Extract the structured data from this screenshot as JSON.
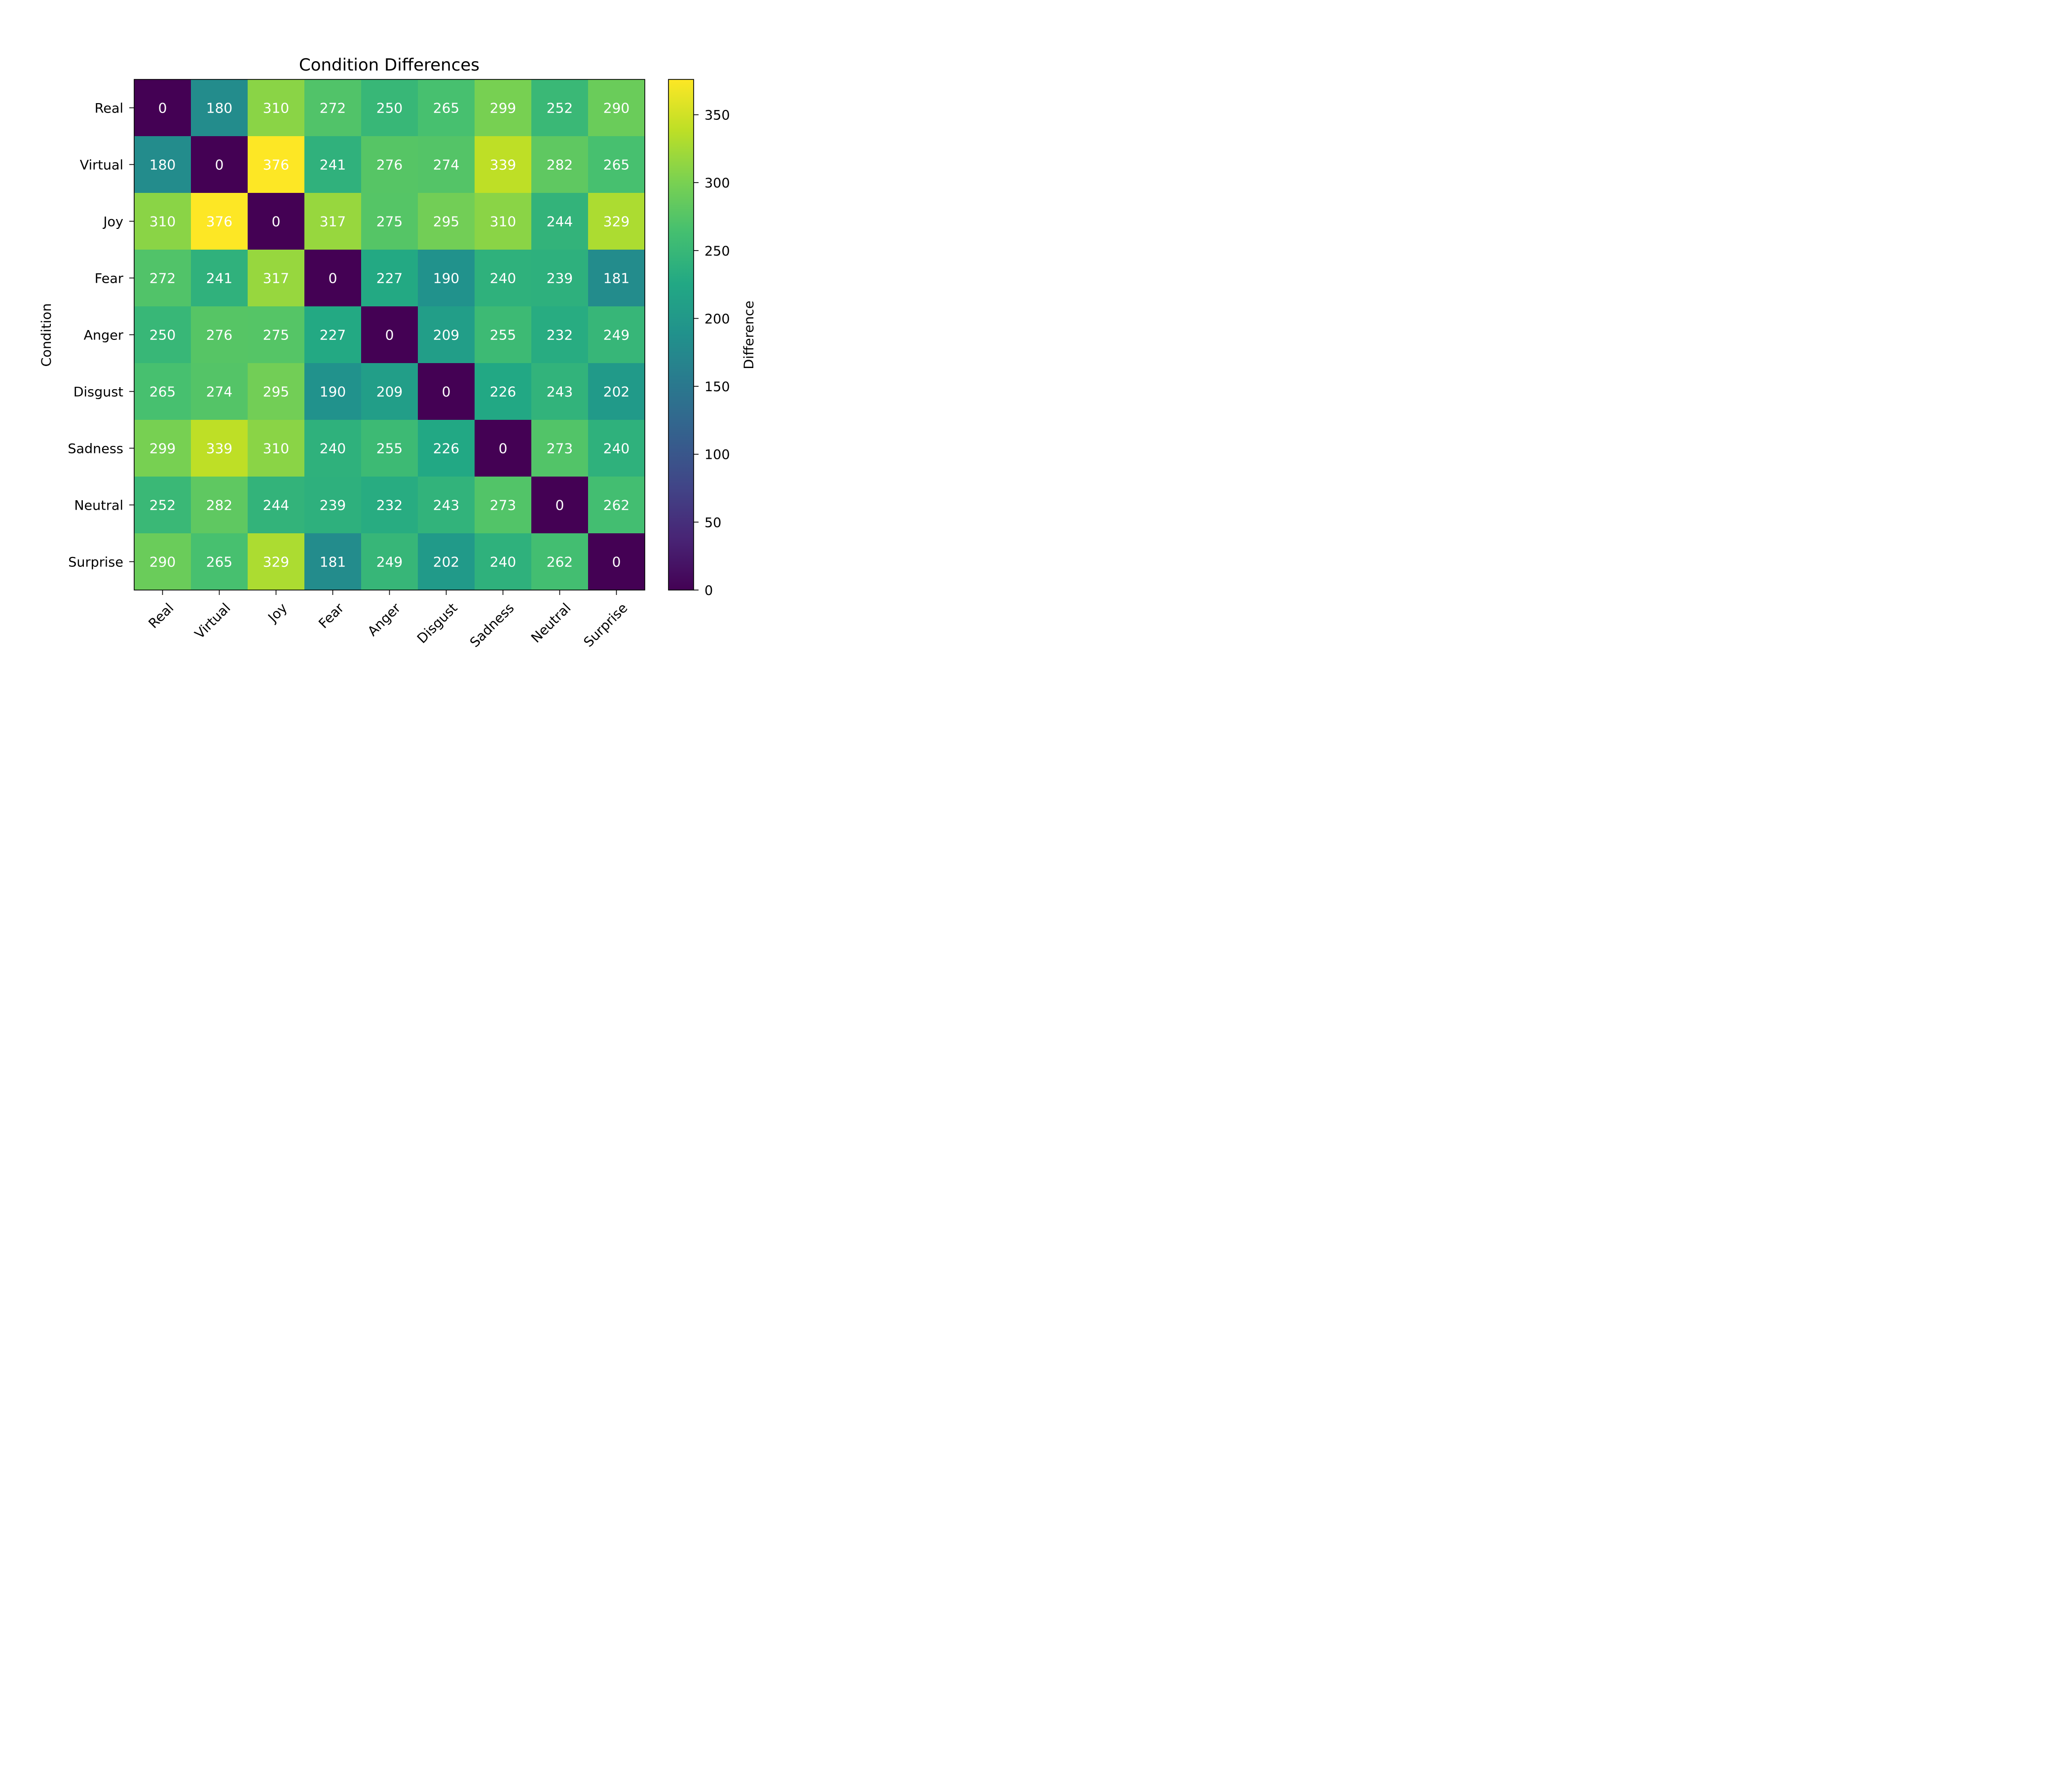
{
  "chart_data": {
    "type": "heatmap",
    "title": "Condition Differences",
    "xlabel": "",
    "ylabel": "Condition",
    "colorbar_label": "Difference",
    "x_categories": [
      "Real",
      "Virtual",
      "Joy",
      "Fear",
      "Anger",
      "Disgust",
      "Sadness",
      "Neutral",
      "Surprise"
    ],
    "y_categories": [
      "Real",
      "Virtual",
      "Joy",
      "Fear",
      "Anger",
      "Disgust",
      "Sadness",
      "Neutral",
      "Surprise"
    ],
    "values": [
      [
        0,
        180,
        310,
        272,
        250,
        265,
        299,
        252,
        290
      ],
      [
        180,
        0,
        376,
        241,
        276,
        274,
        339,
        282,
        265
      ],
      [
        310,
        376,
        0,
        317,
        275,
        295,
        310,
        244,
        329
      ],
      [
        272,
        241,
        317,
        0,
        227,
        190,
        240,
        239,
        181
      ],
      [
        250,
        276,
        275,
        227,
        0,
        209,
        255,
        232,
        249
      ],
      [
        265,
        274,
        295,
        190,
        209,
        0,
        226,
        243,
        202
      ],
      [
        299,
        339,
        310,
        240,
        255,
        226,
        0,
        273,
        240
      ],
      [
        252,
        282,
        244,
        239,
        232,
        243,
        273,
        0,
        262
      ],
      [
        290,
        265,
        329,
        181,
        249,
        202,
        240,
        262,
        0
      ]
    ],
    "colormap": "viridis",
    "color_range": [
      0,
      376
    ],
    "colorbar_ticks": [
      0,
      50,
      100,
      150,
      200,
      250,
      300,
      350
    ],
    "grid": false,
    "cell_label_color": "#ffffff"
  }
}
